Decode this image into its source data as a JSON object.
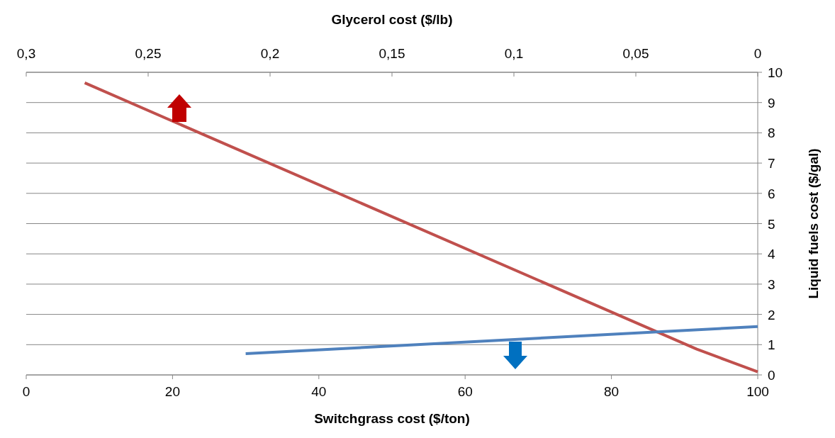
{
  "chart_data": {
    "type": "line",
    "xlabel": "Switchgrass cost ($/ton)",
    "x2label": "Glycerol cost ($/lb)",
    "ylabel": "Liquid fuels cost ($/gal)",
    "xlim": [
      0,
      100
    ],
    "xticks": [
      0,
      20,
      40,
      60,
      80,
      100
    ],
    "x2lim": [
      0.3,
      0
    ],
    "x2ticks": [
      {
        "value": 0.3,
        "label": "0,3"
      },
      {
        "value": 0.25,
        "label": "0,25"
      },
      {
        "value": 0.2,
        "label": "0,2"
      },
      {
        "value": 0.15,
        "label": "0,15"
      },
      {
        "value": 0.1,
        "label": "0,1"
      },
      {
        "value": 0.05,
        "label": "0,05"
      },
      0
    ],
    "ylim": [
      0,
      10
    ],
    "yticks": [
      0,
      1,
      2,
      3,
      4,
      5,
      6,
      7,
      8,
      9,
      10
    ],
    "grid": "y",
    "marker": "none",
    "line_style": "solid",
    "series": [
      {
        "color": "#c0504d",
        "axis": "x2",
        "x": [
          0.276,
          0.025,
          0
        ],
        "values": [
          9.65,
          0.85,
          0.1
        ]
      },
      {
        "color": "#4f81bd",
        "x": [
          30,
          100
        ],
        "values": [
          0.7,
          1.6
        ]
      }
    ]
  }
}
